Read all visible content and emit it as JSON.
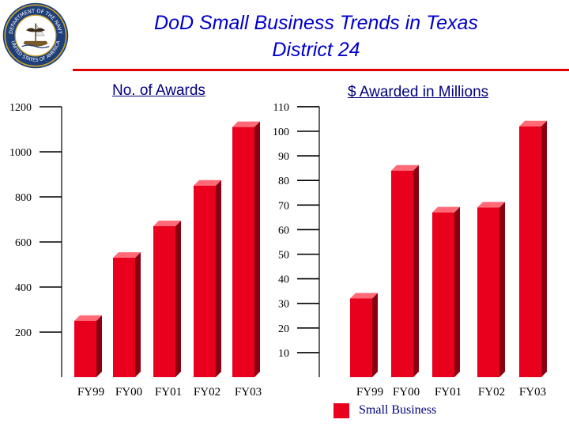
{
  "header": {
    "title_line1": "DoD Small Business Trends in Texas",
    "title_line2": "District 24",
    "seal_text_top": "DEPARTMENT OF THE NAVY",
    "seal_text_bottom": "UNITED STATES OF AMERICA"
  },
  "colors": {
    "title": "#0000cc",
    "accent_line": "#e00000",
    "bar_front": "#e8001c",
    "bar_top": "#ff6a76",
    "bar_side": "#8a0010",
    "seal_blue": "#1f3f7a",
    "seal_gold": "#c9a227"
  },
  "chart_data": [
    {
      "type": "bar",
      "title": "No. of Awards",
      "categories": [
        "FY99",
        "FY00",
        "FY01",
        "FY02",
        "FY03"
      ],
      "series": [
        {
          "name": "Small Business",
          "values": [
            250,
            530,
            670,
            850,
            1110
          ]
        }
      ],
      "yticks": [
        200,
        400,
        600,
        800,
        1000,
        1200
      ],
      "ylim": [
        0,
        1200
      ]
    },
    {
      "type": "bar",
      "title": "$ Awarded in Millions",
      "categories": [
        "FY99",
        "FY00",
        "FY01",
        "FY02",
        "FY03"
      ],
      "series": [
        {
          "name": "Small Business",
          "values": [
            32,
            84,
            67,
            69,
            102
          ]
        }
      ],
      "yticks": [
        10,
        20,
        30,
        40,
        50,
        60,
        70,
        80,
        90,
        100,
        110
      ],
      "ylim": [
        0,
        110
      ]
    }
  ],
  "legend": {
    "label": "Small Business"
  }
}
